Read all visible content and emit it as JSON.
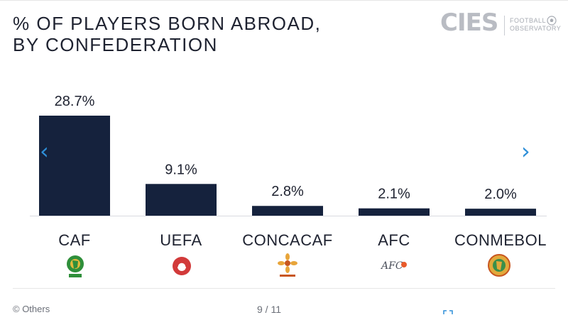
{
  "title_lines": [
    "% OF PLAYERS BORN ABROAD,",
    "BY CONFEDERATION"
  ],
  "logo": {
    "word": "CIES",
    "sub_line1": "FOOTBALL",
    "sub_line2": "OBSERVATORY"
  },
  "nav": {
    "prev_glyph": "‹",
    "next_glyph": "›"
  },
  "footer": {
    "credit": "© Others",
    "pager": "9 / 11"
  },
  "colors": {
    "bar": "#15223d",
    "text": "#1e2230",
    "accent": "#2e8fd8"
  },
  "icons": {
    "CAF": "caf-logo-icon",
    "UEFA": "uefa-logo-icon",
    "CONCACAF": "concacaf-logo-icon",
    "AFC": "afc-logo-icon",
    "CONMEBOL": "conmebol-logo-icon"
  },
  "chart_data": {
    "type": "bar",
    "title": "% OF PLAYERS BORN ABROAD, BY CONFEDERATION",
    "categories": [
      "CAF",
      "UEFA",
      "CONCACAF",
      "AFC",
      "CONMEBOL"
    ],
    "values": [
      28.7,
      9.1,
      2.8,
      2.1,
      2.0
    ],
    "value_labels": [
      "28.7%",
      "9.1%",
      "2.8%",
      "2.1%",
      "2.0%"
    ],
    "ylim": [
      0,
      30
    ],
    "grid": false,
    "axis_visible": false
  }
}
